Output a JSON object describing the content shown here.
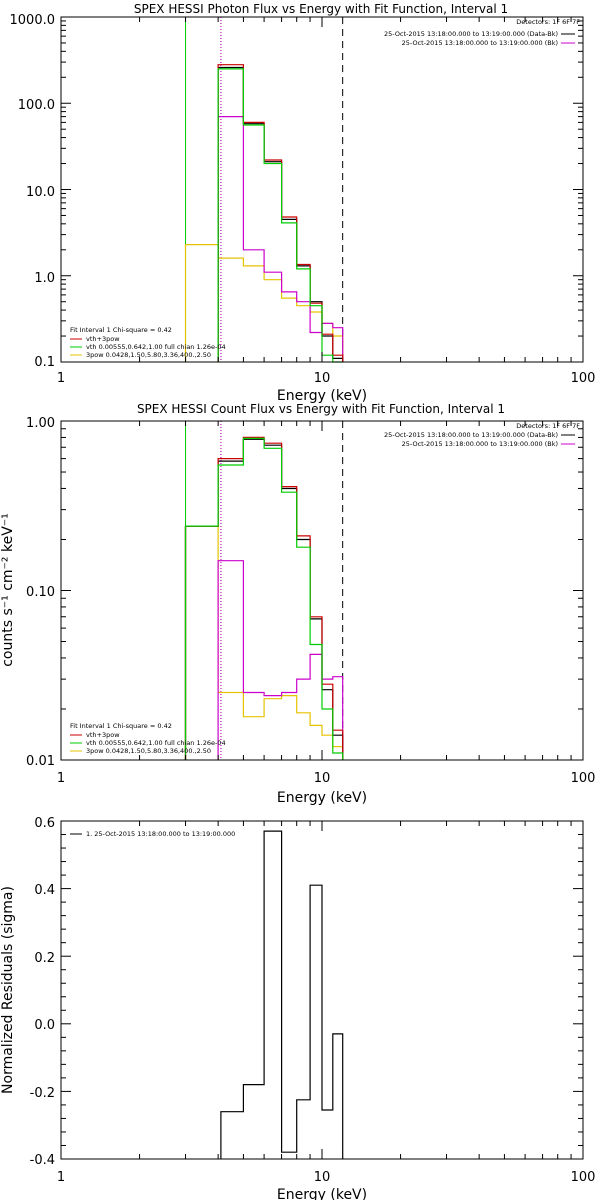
{
  "chart_data": [
    {
      "type": "line",
      "title": "SPEX HESSI Photon Flux vs Energy with Fit Function, Interval 1",
      "xlabel": "Energy (keV)",
      "ylabel": "",
      "xscale": "log",
      "yscale": "log",
      "xlim": [
        1,
        100
      ],
      "ylim": [
        0.1,
        1000
      ],
      "xticks": [
        "1",
        "10",
        "100"
      ],
      "yticks": [
        "0.1",
        "1.0",
        "10.0",
        "100.0",
        "1000.0"
      ],
      "info_lines": [
        "Detectors: 1F 6F 7F",
        "25-Oct-2015 13:18:00.000 to 13:19:00.000 (Data-Bk)",
        "25-Oct-2015 13:18:00.000 to 13:19:00.000 (Bk)"
      ],
      "legend": [
        "Fit Interval 1    Chi-square = 0.42",
        "vth+3pow",
        "vth 0.00555,0.642,1.00  full chian 1.26e-04",
        "3pow 0.0428,1.50,5.80,3.36,400.,2.50"
      ],
      "edges": [
        3,
        4,
        5,
        6,
        7,
        8,
        9,
        10,
        11,
        12
      ],
      "vlines": [
        {
          "x": 3.0,
          "color": "#00cc00",
          "style": "solid"
        },
        {
          "x": 4.1,
          "color": "#000000",
          "style": "dotted"
        },
        {
          "x": 4.1,
          "color": "#cc00cc",
          "style": "dotted"
        },
        {
          "x": 12.0,
          "color": "#000000",
          "style": "dashed"
        }
      ],
      "series": [
        {
          "color": "#e6c300",
          "values": [
            2.3,
            1.6,
            1.3,
            0.9,
            0.55,
            0.45,
            0.38,
            0.28,
            0.2
          ]
        },
        {
          "color": "#cc00cc",
          "values": [
            null,
            70,
            2.0,
            1.1,
            0.65,
            0.5,
            0.22,
            0.28,
            0.25
          ]
        },
        {
          "color": "#000000",
          "values": [
            null,
            260,
            58,
            21,
            4.5,
            1.3,
            0.5,
            0.2,
            0.11
          ]
        },
        {
          "color": "#cc0000",
          "values": [
            null,
            280,
            60,
            22,
            4.8,
            1.35,
            0.48,
            0.21,
            0.12
          ]
        },
        {
          "color": "#00cc00",
          "values": [
            null,
            250,
            56,
            20,
            4.1,
            1.2,
            0.45,
            0.12,
            0.1
          ]
        }
      ]
    },
    {
      "type": "line",
      "title": "SPEX HESSI Count Flux vs Energy with Fit Function, Interval 1",
      "xlabel": "Energy (keV)",
      "ylabel": "counts s⁻¹ cm⁻² keV⁻¹",
      "xscale": "log",
      "yscale": "log",
      "xlim": [
        1,
        100
      ],
      "ylim": [
        0.01,
        1
      ],
      "xticks": [
        "1",
        "10",
        "100"
      ],
      "yticks": [
        "0.01",
        "0.10",
        "1.00"
      ],
      "info_lines": [
        "Detectors: 1F 6F 7F",
        "25-Oct-2015 13:18:00.000 to 13:19:00.000 (Data-Bk)",
        "25-Oct-2015 13:18:00.000 to 13:19:00.000 (Bk)"
      ],
      "legend": [
        "Fit Interval 1    Chi-square = 0.42",
        "vth+3pow",
        "vth 0.00555,0.642,1.00  full chian 1.26e-04",
        "3pow 0.0428,1.50,5.80,3.36,400.,2.50"
      ],
      "edges": [
        3,
        4,
        5,
        6,
        7,
        8,
        9,
        10,
        11,
        12
      ],
      "vlines": [
        {
          "x": 3.0,
          "color": "#00cc00",
          "style": "solid"
        },
        {
          "x": 4.1,
          "color": "#000000",
          "style": "dotted"
        },
        {
          "x": 4.1,
          "color": "#cc00cc",
          "style": "dotted"
        },
        {
          "x": 12.0,
          "color": "#000000",
          "style": "dashed"
        }
      ],
      "series": [
        {
          "color": "#e6c300",
          "values": [
            0.24,
            0.025,
            0.018,
            0.023,
            0.024,
            0.019,
            0.016,
            0.014,
            0.012
          ]
        },
        {
          "color": "#cc00cc",
          "values": [
            null,
            0.15,
            0.025,
            0.024,
            0.025,
            0.03,
            0.042,
            0.03,
            0.031
          ]
        },
        {
          "color": "#000000",
          "values": [
            0.24,
            0.58,
            0.78,
            0.72,
            0.4,
            0.2,
            0.068,
            0.026,
            0.014
          ]
        },
        {
          "color": "#cc0000",
          "values": [
            0.24,
            0.6,
            0.8,
            0.74,
            0.41,
            0.21,
            0.07,
            0.028,
            0.015
          ]
        },
        {
          "color": "#00cc00",
          "values": [
            0.24,
            0.55,
            0.79,
            0.69,
            0.38,
            0.18,
            0.048,
            0.02,
            0.011
          ]
        }
      ]
    },
    {
      "type": "line",
      "title": "",
      "xlabel": "Energy (keV)",
      "ylabel": "Normalized Residuals (sigma)",
      "xscale": "log",
      "yscale": "linear",
      "xlim": [
        1,
        100
      ],
      "ylim": [
        -0.4,
        0.6
      ],
      "xticks": [
        "1",
        "10",
        "100"
      ],
      "yticks": [
        "-0.4",
        "-0.2",
        "0.0",
        "0.2",
        "0.4",
        "0.6"
      ],
      "legend": [
        "1. 25-Oct-2015 13:18:00.000 to 13:19:00.000"
      ],
      "edges": [
        4.1,
        5,
        6,
        7,
        8,
        9,
        10,
        11,
        12
      ],
      "series": [
        {
          "color": "#000000",
          "values": [
            -0.26,
            -0.18,
            0.57,
            -0.38,
            -0.225,
            0.41,
            -0.255,
            -0.03
          ]
        }
      ]
    }
  ]
}
